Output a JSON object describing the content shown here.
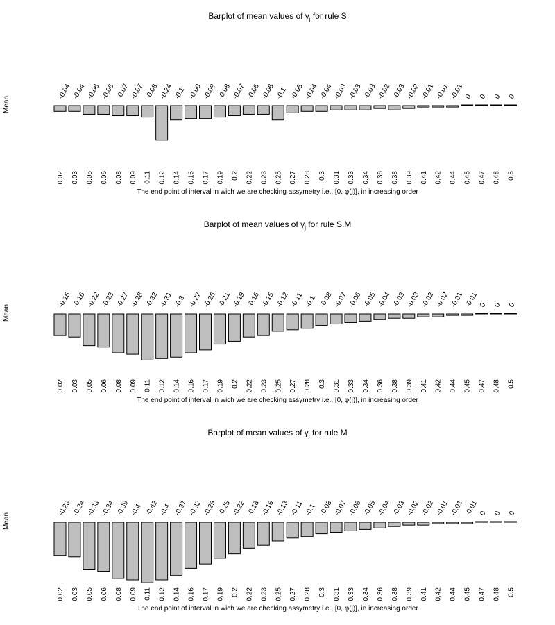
{
  "chart_data": [
    {
      "type": "bar",
      "title": "Barplot of mean values of γ",
      "title_subscript": "j",
      "title_suffix": " for rule S",
      "ylabel": "Mean",
      "xlabel": "The end point of interval in wich we are checking assymetry i.e., [0, φ(j)], in increasing order",
      "categories": [
        "0.02",
        "0.03",
        "0.05",
        "0.06",
        "0.08",
        "0.09",
        "0.11",
        "0.12",
        "0.14",
        "0.16",
        "0.17",
        "0.19",
        "0.2",
        "0.22",
        "0.23",
        "0.25",
        "0.27",
        "0.28",
        "0.3",
        "0.31",
        "0.33",
        "0.34",
        "0.36",
        "0.38",
        "0.39",
        "0.41",
        "0.42",
        "0.44",
        "0.45",
        "0.47",
        "0.48",
        "0.5"
      ],
      "values": [
        -0.04,
        -0.04,
        -0.06,
        -0.06,
        -0.07,
        -0.07,
        -0.08,
        -0.24,
        -0.1,
        -0.09,
        -0.09,
        -0.08,
        -0.07,
        -0.06,
        -0.06,
        -0.1,
        -0.05,
        -0.04,
        -0.04,
        -0.03,
        -0.03,
        -0.03,
        -0.02,
        -0.03,
        -0.02,
        -0.01,
        -0.01,
        -0.01,
        0,
        0,
        0,
        0
      ],
      "value_labels": [
        "-0.04",
        "-0.04",
        "-0.06",
        "-0.06",
        "-0.07",
        "-0.07",
        "-0.08",
        "-0.24",
        "-0.1",
        "-0.09",
        "-0.09",
        "-0.08",
        "-0.07",
        "-0.06",
        "-0.06",
        "-0.1",
        "-0.05",
        "-0.04",
        "-0.04",
        "-0.03",
        "-0.03",
        "-0.03",
        "-0.02",
        "-0.03",
        "-0.02",
        "-0.01",
        "-0.01",
        "-0.01",
        "0",
        "0",
        "0",
        "0"
      ],
      "bar_color": "#bebebe",
      "grid": false
    },
    {
      "type": "bar",
      "title": "Barplot of mean values of γ",
      "title_subscript": "j",
      "title_suffix": " for rule S.M",
      "ylabel": "Mean",
      "xlabel": "The end point of interval in wich we are checking assymetry i.e., [0, φ(j)], in increasing order",
      "categories": [
        "0.02",
        "0.03",
        "0.05",
        "0.06",
        "0.08",
        "0.09",
        "0.11",
        "0.12",
        "0.14",
        "0.16",
        "0.17",
        "0.19",
        "0.2",
        "0.22",
        "0.23",
        "0.25",
        "0.27",
        "0.28",
        "0.3",
        "0.31",
        "0.33",
        "0.34",
        "0.36",
        "0.38",
        "0.39",
        "0.41",
        "0.42",
        "0.44",
        "0.45",
        "0.47",
        "0.48",
        "0.5"
      ],
      "values": [
        -0.15,
        -0.16,
        -0.22,
        -0.23,
        -0.27,
        -0.28,
        -0.32,
        -0.31,
        -0.3,
        -0.27,
        -0.25,
        -0.21,
        -0.19,
        -0.16,
        -0.15,
        -0.12,
        -0.11,
        -0.1,
        -0.08,
        -0.07,
        -0.06,
        -0.05,
        -0.04,
        -0.03,
        -0.03,
        -0.02,
        -0.02,
        -0.01,
        -0.01,
        0,
        0,
        0
      ],
      "value_labels": [
        "-0.15",
        "-0.16",
        "-0.22",
        "-0.23",
        "-0.27",
        "-0.28",
        "-0.32",
        "-0.31",
        "-0.3",
        "-0.27",
        "-0.25",
        "-0.21",
        "-0.19",
        "-0.16",
        "-0.15",
        "-0.12",
        "-0.11",
        "-0.1",
        "-0.08",
        "-0.07",
        "-0.06",
        "-0.05",
        "-0.04",
        "-0.03",
        "-0.03",
        "-0.02",
        "-0.02",
        "-0.01",
        "-0.01",
        "0",
        "0",
        "0"
      ],
      "bar_color": "#bebebe",
      "grid": false
    },
    {
      "type": "bar",
      "title": "Barplot of mean values of γ",
      "title_subscript": "j",
      "title_suffix": " for rule M",
      "ylabel": "Mean",
      "xlabel": "The end point of interval in wich we are checking assymetry i.e., [0, φ(j)], in increasing order",
      "categories": [
        "0.02",
        "0.03",
        "0.05",
        "0.06",
        "0.08",
        "0.09",
        "0.11",
        "0.12",
        "0.14",
        "0.16",
        "0.17",
        "0.19",
        "0.2",
        "0.22",
        "0.23",
        "0.25",
        "0.27",
        "0.28",
        "0.3",
        "0.31",
        "0.33",
        "0.34",
        "0.36",
        "0.38",
        "0.39",
        "0.41",
        "0.42",
        "0.44",
        "0.45",
        "0.47",
        "0.48",
        "0.5"
      ],
      "values": [
        -0.23,
        -0.24,
        -0.33,
        -0.34,
        -0.39,
        -0.4,
        -0.42,
        -0.4,
        -0.37,
        -0.32,
        -0.29,
        -0.25,
        -0.22,
        -0.18,
        -0.16,
        -0.13,
        -0.11,
        -0.1,
        -0.08,
        -0.07,
        -0.06,
        -0.05,
        -0.04,
        -0.03,
        -0.02,
        -0.02,
        -0.01,
        -0.01,
        -0.01,
        0,
        0,
        0
      ],
      "value_labels": [
        "-0.23",
        "-0.24",
        "-0.33",
        "-0.34",
        "-0.39",
        "-0.4",
        "-0.42",
        "-0.4",
        "-0.37",
        "-0.32",
        "-0.29",
        "-0.25",
        "-0.22",
        "-0.18",
        "-0.16",
        "-0.13",
        "-0.11",
        "-0.1",
        "-0.08",
        "-0.07",
        "-0.06",
        "-0.05",
        "-0.04",
        "-0.03",
        "-0.02",
        "-0.02",
        "-0.01",
        "-0.01",
        "-0.01",
        "0",
        "0",
        "0"
      ],
      "bar_color": "#bebebe",
      "grid": false
    }
  ]
}
